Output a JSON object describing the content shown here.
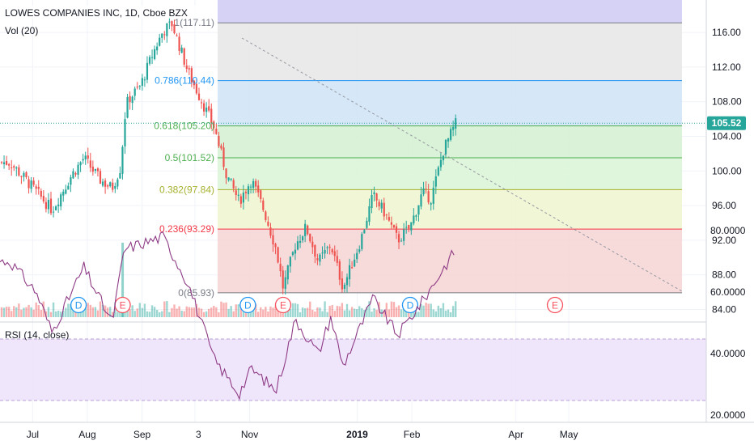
{
  "header": {
    "symbol_line": "LOWES COMPANIES INC, 1D, Cboe BZX",
    "vol_label": "Vol (20)"
  },
  "rsi": {
    "label": "RSI (14, close)",
    "ticks": [
      "80.0000",
      "60.0000",
      "40.0000",
      "20.0000"
    ],
    "upper_band": 70,
    "lower_band": 30
  },
  "price_axis": {
    "ticks": [
      "116.00",
      "112.00",
      "108.00",
      "104.00",
      "100.00",
      "96.00",
      "92.00",
      "88.00",
      "84.00"
    ],
    "last_price": "105.52"
  },
  "time_axis": {
    "labels": [
      "Jul",
      "Aug",
      "Sep",
      "3",
      "Nov",
      "2019",
      "Feb",
      "Apr",
      "May"
    ]
  },
  "fib_levels": [
    {
      "text": "1(117.11)",
      "value": 117.11,
      "color": "#787b86"
    },
    {
      "text": "0.786(110.44)",
      "value": 110.44,
      "color": "#2196f3"
    },
    {
      "text": "0.618(105.20)",
      "value": 105.2,
      "color": "#4caf50"
    },
    {
      "text": "0.5(101.52)",
      "value": 101.52,
      "color": "#4caf50"
    },
    {
      "text": "0.382(97.84)",
      "value": 97.84,
      "color": "#a6b12e"
    },
    {
      "text": "0.236(93.29)",
      "value": 93.29,
      "color": "#f23645"
    },
    {
      "text": "0(85.93)",
      "value": 85.93,
      "color": "#787b86"
    }
  ],
  "event_markers": [
    {
      "letter": "D",
      "kind": "dividend"
    },
    {
      "letter": "E",
      "kind": "earnings"
    },
    {
      "letter": "D",
      "kind": "dividend"
    },
    {
      "letter": "E",
      "kind": "earnings"
    },
    {
      "letter": "D",
      "kind": "dividend"
    },
    {
      "letter": "E",
      "kind": "earnings"
    }
  ],
  "colors": {
    "up": "#26a69a",
    "down": "#ef5350",
    "rsi_line": "#8e3a85",
    "rsi_band": "#ead9fb",
    "last_price_bg": "#26a69a"
  },
  "chart_data": {
    "type": "candlestick",
    "title": "LOWES COMPANIES INC, 1D, Cboe BZX",
    "ylim": [
      83.5,
      118.5
    ],
    "x_range": [
      "Jun 2018",
      "May 2019"
    ],
    "close_path": [
      {
        "date": "Jun 18",
        "close": 101
      },
      {
        "date": "Jun 27",
        "close": 99
      },
      {
        "date": "Jul 3",
        "close": 97.6
      },
      {
        "date": "Jul 12",
        "close": 95.5
      },
      {
        "date": "Jul 23",
        "close": 99.5
      },
      {
        "date": "Jul 30",
        "close": 101.5
      },
      {
        "date": "Aug 8",
        "close": 99
      },
      {
        "date": "Aug 15",
        "close": 98
      },
      {
        "date": "Aug 20",
        "close": 100.5
      },
      {
        "date": "Aug 22",
        "close": 106
      },
      {
        "date": "Aug 24",
        "close": 108.2
      },
      {
        "date": "Aug 31",
        "close": 109.8
      },
      {
        "date": "Sep 7",
        "close": 113.5
      },
      {
        "date": "Sep 13",
        "close": 116.2
      },
      {
        "date": "Sep 18",
        "close": 117
      },
      {
        "date": "Sep 27",
        "close": 111.5
      },
      {
        "date": "Oct 5",
        "close": 108
      },
      {
        "date": "Oct 12",
        "close": 105
      },
      {
        "date": "Oct 19",
        "close": 99.5
      },
      {
        "date": "Oct 26",
        "close": 96.5
      },
      {
        "date": "Nov 2",
        "close": 99
      },
      {
        "date": "Nov 9",
        "close": 95.5
      },
      {
        "date": "Nov 16",
        "close": 91
      },
      {
        "date": "Nov 20",
        "close": 86.5
      },
      {
        "date": "Nov 27",
        "close": 91.5
      },
      {
        "date": "Dec 3",
        "close": 93.5
      },
      {
        "date": "Dec 10",
        "close": 89.5
      },
      {
        "date": "Dec 17",
        "close": 91.5
      },
      {
        "date": "Dec 24",
        "close": 86.5
      },
      {
        "date": "Jan 3",
        "close": 92
      },
      {
        "date": "Jan 10",
        "close": 97.2
      },
      {
        "date": "Jan 17",
        "close": 95
      },
      {
        "date": "Jan 24",
        "close": 92
      },
      {
        "date": "Jan 31",
        "close": 93.5
      },
      {
        "date": "Feb 7",
        "close": 97.5
      },
      {
        "date": "Feb 12",
        "close": 96.8
      },
      {
        "date": "Feb 19",
        "close": 102.5
      },
      {
        "date": "Feb 26",
        "close": 105.52
      }
    ],
    "volume": {
      "spike_date": "Aug 21",
      "typical": "low"
    },
    "rsi_path": [
      {
        "date": "Jun 18",
        "value": 70
      },
      {
        "date": "Jul 3",
        "value": 60
      },
      {
        "date": "Jul 12",
        "value": 47
      },
      {
        "date": "Jul 30",
        "value": 68
      },
      {
        "date": "Aug 15",
        "value": 50
      },
      {
        "date": "Aug 22",
        "value": 74
      },
      {
        "date": "Sep 13",
        "value": 78
      },
      {
        "date": "Sep 27",
        "value": 63
      },
      {
        "date": "Oct 12",
        "value": 38
      },
      {
        "date": "Oct 26",
        "value": 27
      },
      {
        "date": "Nov 2",
        "value": 35
      },
      {
        "date": "Nov 16",
        "value": 28
      },
      {
        "date": "Nov 27",
        "value": 51
      },
      {
        "date": "Dec 10",
        "value": 40
      },
      {
        "date": "Dec 17",
        "value": 52
      },
      {
        "date": "Dec 24",
        "value": 36
      },
      {
        "date": "Jan 10",
        "value": 58
      },
      {
        "date": "Jan 24",
        "value": 46
      },
      {
        "date": "Feb 7",
        "value": 57
      },
      {
        "date": "Feb 26",
        "value": 74
      }
    ],
    "grid": true
  }
}
